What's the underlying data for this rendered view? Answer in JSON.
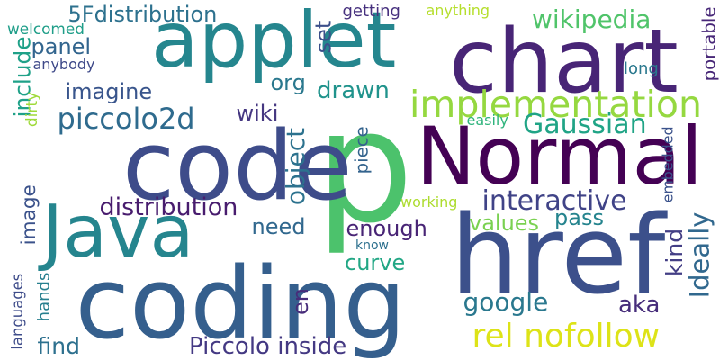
{
  "words": [
    {
      "text": "p",
      "color": "#4cc26c",
      "vertical": false
    },
    {
      "text": "applet",
      "color": "#25868e",
      "vertical": false
    },
    {
      "text": "coding",
      "color": "#355f8d",
      "vertical": false
    },
    {
      "text": "code",
      "color": "#3e4c8a",
      "vertical": false
    },
    {
      "text": "href",
      "color": "#3c508b",
      "vertical": false
    },
    {
      "text": "Java",
      "color": "#25858e",
      "vertical": false
    },
    {
      "text": "Normal",
      "color": "#440154",
      "vertical": false
    },
    {
      "text": "chart",
      "color": "#482576",
      "vertical": false
    },
    {
      "text": "implementation",
      "color": "#95d840",
      "vertical": false
    },
    {
      "text": "rel nofollow",
      "color": "#dde318",
      "vertical": false
    },
    {
      "text": "5Fdistribution",
      "color": "#2d718e",
      "vertical": false
    },
    {
      "text": "wikipedia",
      "color": "#50c46a",
      "vertical": false
    },
    {
      "text": "piccolo2d",
      "color": "#2f6b8e",
      "vertical": false
    },
    {
      "text": "Gaussian",
      "color": "#20a486",
      "vertical": false
    },
    {
      "text": "distribution",
      "color": "#481c6e",
      "vertical": false
    },
    {
      "text": "interactive",
      "color": "#404387",
      "vertical": false
    },
    {
      "text": "Piccolo inside",
      "color": "#443983",
      "vertical": false
    },
    {
      "text": "imagine",
      "color": "#39558c",
      "vertical": false
    },
    {
      "text": "panel",
      "color": "#32658e",
      "vertical": false
    },
    {
      "text": "object",
      "color": "#2c728e",
      "vertical": true
    },
    {
      "text": "Ideally",
      "color": "#31688e",
      "vertical": true
    },
    {
      "text": "set",
      "color": "#3c4f8a",
      "vertical": true
    },
    {
      "text": "include",
      "color": "#1fa188",
      "vertical": true
    },
    {
      "text": "drawn",
      "color": "#20938c",
      "vertical": false
    },
    {
      "text": "org",
      "color": "#2a788e",
      "vertical": false
    },
    {
      "text": "wiki",
      "color": "#453781",
      "vertical": false
    },
    {
      "text": "enough",
      "color": "#482475",
      "vertical": false
    },
    {
      "text": "values",
      "color": "#7ad151",
      "vertical": false
    },
    {
      "text": "pass",
      "color": "#25848e",
      "vertical": false
    },
    {
      "text": "need",
      "color": "#31688e",
      "vertical": false
    },
    {
      "text": "curve",
      "color": "#22a785",
      "vertical": false
    },
    {
      "text": "google",
      "color": "#2a788e",
      "vertical": false
    },
    {
      "text": "aka",
      "color": "#472d7b",
      "vertical": false
    },
    {
      "text": "kind",
      "color": "#433e85",
      "vertical": true
    },
    {
      "text": "en",
      "color": "#472c7a",
      "vertical": true
    },
    {
      "text": "image",
      "color": "#3b528b",
      "vertical": true
    },
    {
      "text": "find",
      "color": "#2d708e",
      "vertical": false
    },
    {
      "text": "getting",
      "color": "#46307e",
      "vertical": false
    },
    {
      "text": "anything",
      "color": "#b5de2b",
      "vertical": false
    },
    {
      "text": "welcomed",
      "color": "#1f9e89",
      "vertical": false
    },
    {
      "text": "anybody",
      "color": "#3e4989",
      "vertical": false
    },
    {
      "text": "dirty",
      "color": "#9fda3a",
      "vertical": true
    },
    {
      "text": "languages",
      "color": "#3e4c8a",
      "vertical": true
    },
    {
      "text": "hands",
      "color": "#277f8e",
      "vertical": true
    },
    {
      "text": "long",
      "color": "#2a788e",
      "vertical": false
    },
    {
      "text": "portable",
      "color": "#482878",
      "vertical": true
    },
    {
      "text": "easily",
      "color": "#2fb47c",
      "vertical": false
    },
    {
      "text": "embedded",
      "color": "#3b528b",
      "vertical": true
    },
    {
      "text": "piece",
      "color": "#33638d",
      "vertical": true
    },
    {
      "text": "working",
      "color": "#addc30",
      "vertical": false
    },
    {
      "text": "know",
      "color": "#2d708e",
      "vertical": false
    }
  ]
}
